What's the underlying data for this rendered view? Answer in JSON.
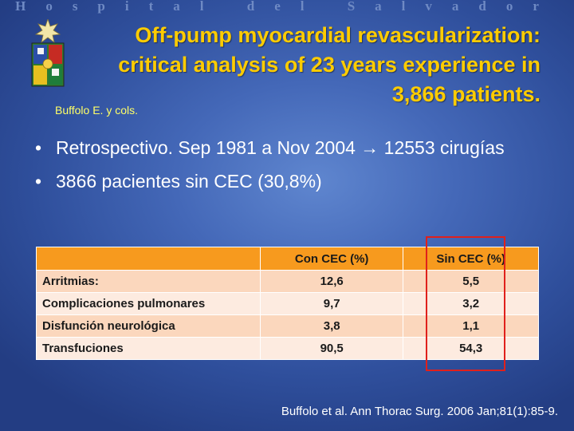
{
  "header": {
    "hospital_name": "Hospital del Salvador"
  },
  "slide": {
    "title_lines": [
      "Off-pump myocardial revascularization:",
      "critical analysis of 23 years experience in",
      "3,866 patients."
    ],
    "author": "Buffolo E. y cols.",
    "bullets": [
      {
        "dot": "•",
        "text_before": "Retrospectivo. Sep 1981 a Nov 2004 ",
        "arrow": "→",
        "text_after": " 12553 cirugías"
      },
      {
        "dot": "•",
        "text": "3866 pacientes sin CEC (30,8%)"
      }
    ],
    "table": {
      "headers": [
        "",
        "Con CEC (%)",
        "Sin CEC (%)"
      ],
      "rows": [
        [
          "Arritmias:",
          "12,6",
          "5,5"
        ],
        [
          "Complicaciones pulmonares",
          "9,7",
          "3,2"
        ],
        [
          "Disfunción neurológica",
          "3,8",
          "1,1"
        ],
        [
          "Transfuciones",
          "90,5",
          "54,3"
        ]
      ]
    },
    "citation": "Buffolo et al. Ann Thorac Surg. 2006 Jan;81(1):85-9."
  },
  "colors": {
    "title": "#ffcc00",
    "author": "#ffff66",
    "table_header": "#f79a1e",
    "table_row_odd": "#fbd7bd",
    "table_row_even": "#fdebe0",
    "highlight_box": "#e0201c"
  }
}
